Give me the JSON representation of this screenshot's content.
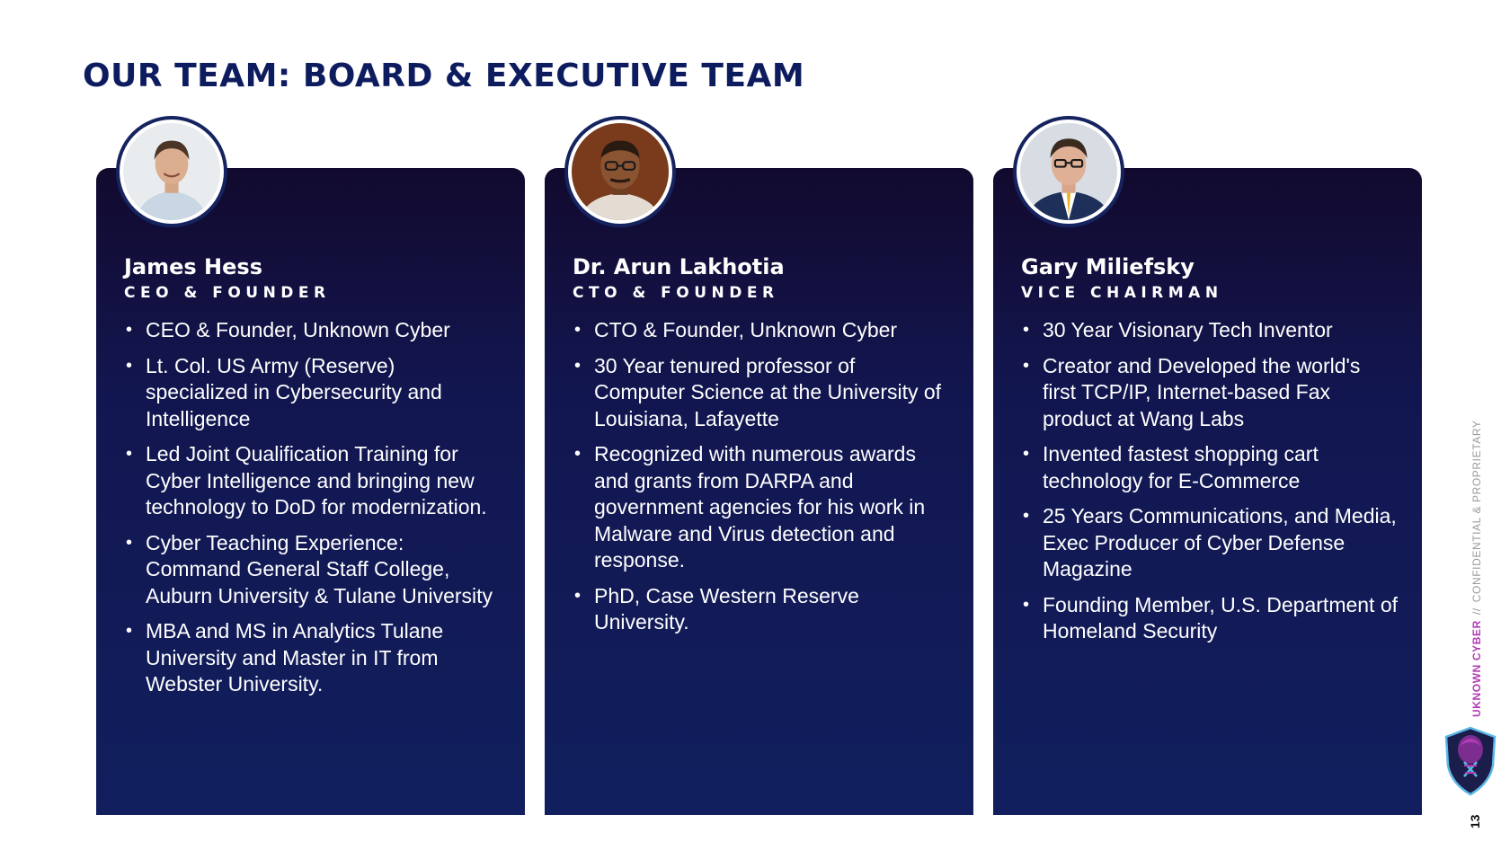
{
  "page": {
    "title": "OUR TEAM: BOARD & EXECUTIVE TEAM",
    "number": "13"
  },
  "sidebar": {
    "brand": "UKNOWN CYBER",
    "separator": "//",
    "confidential": "CONFIDENTIAL & PROPRIETARY"
  },
  "colors": {
    "title": "#0d1c5e",
    "card_top": "#120a2e",
    "card_bottom": "#111f5e",
    "brand_accent": "#b23bb5"
  },
  "team": [
    {
      "name": "James Hess",
      "role": "CEO & FOUNDER",
      "bullets": [
        "CEO & Founder, Unknown Cyber",
        "Lt. Col. US Army (Reserve) specialized in Cybersecurity and Intelligence",
        "Led Joint Qualification Training for Cyber Intelligence and bringing new technology to DoD for modernization.",
        "Cyber Teaching Experience: Command General Staff College, Auburn University & Tulane University",
        "MBA and MS in Analytics Tulane University and Master in IT from Webster University."
      ]
    },
    {
      "name": "Dr. Arun Lakhotia",
      "role": "CTO & FOUNDER",
      "bullets": [
        "CTO & Founder, Unknown Cyber",
        "30 Year tenured professor of Computer Science at the University of Louisiana, Lafayette",
        "Recognized with numerous awards and grants from DARPA and government agencies for his work in Malware and Virus detection and response.",
        "PhD,  Case Western Reserve University."
      ]
    },
    {
      "name": "Gary Miliefsky",
      "role": "VICE CHAIRMAN",
      "bullets": [
        "30 Year Visionary Tech Inventor",
        "Creator and Developed the world's first TCP/IP, Internet-based Fax product at Wang Labs",
        "Invented fastest shopping cart technology for E-Commerce",
        "25 Years Communications, and Media, Exec Producer of  Cyber Defense Magazine",
        "Founding Member, U.S. Department of Homeland Security"
      ]
    }
  ]
}
